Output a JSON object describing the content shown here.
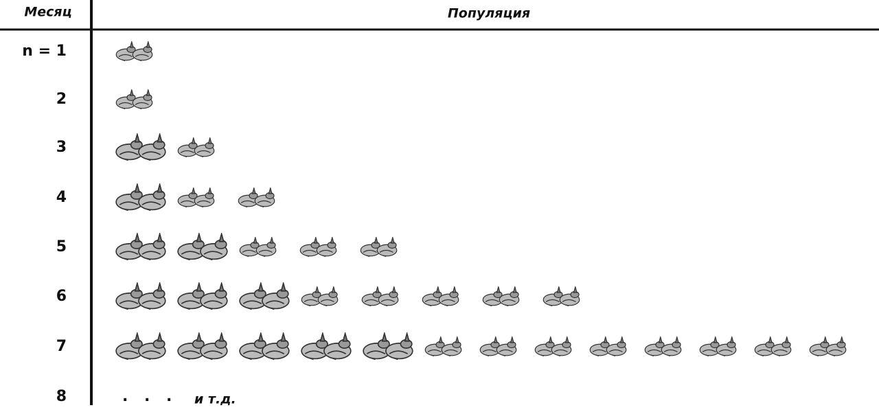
{
  "header": {
    "month": "Месяц",
    "population": "Популяция"
  },
  "rows": [
    {
      "month": "n = 1"
    },
    {
      "month": "2"
    },
    {
      "month": "3"
    },
    {
      "month": "4"
    },
    {
      "month": "5"
    },
    {
      "month": "6"
    },
    {
      "month": "7"
    },
    {
      "month": "8"
    }
  ],
  "ellipsis": ". . .",
  "etc": "и т.д."
}
